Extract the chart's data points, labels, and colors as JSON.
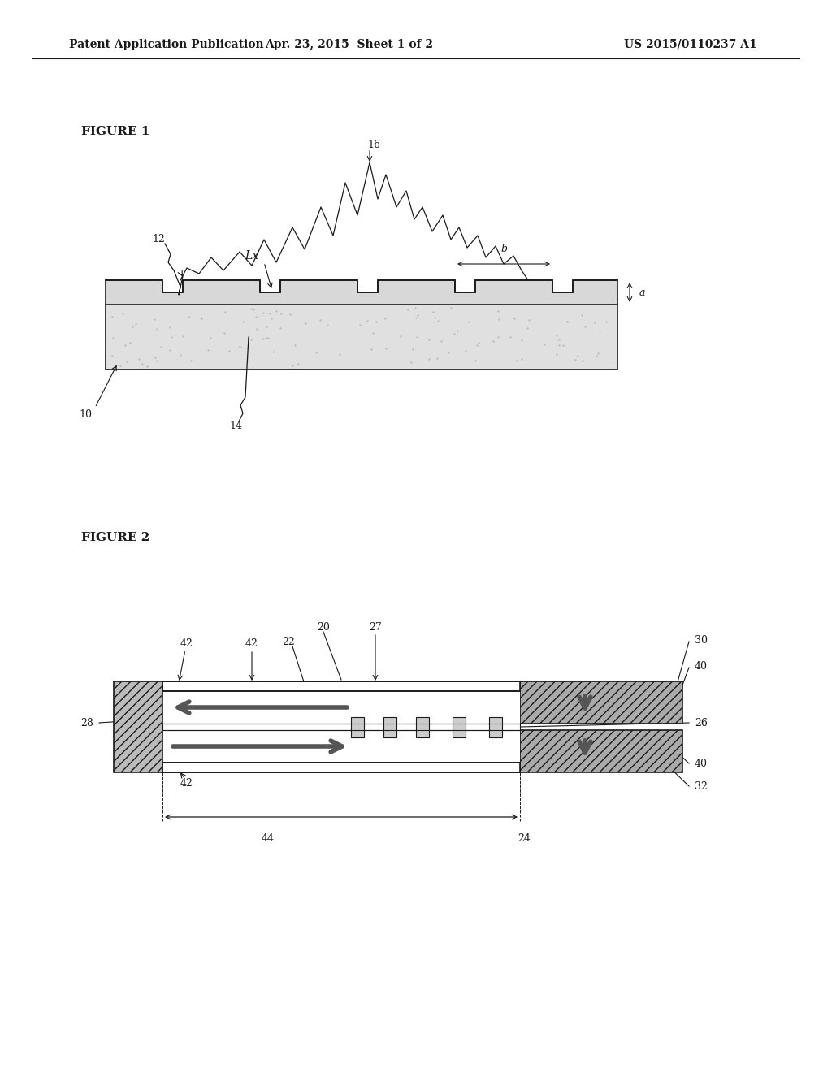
{
  "bg_color": "#ffffff",
  "header_left": "Patent Application Publication",
  "header_mid": "Apr. 23, 2015  Sheet 1 of 2",
  "header_right": "US 2015/0110237 A1",
  "fig1_label": "FIGURE 1",
  "fig2_label": "FIGURE 2",
  "line_color": "#1a1a1a"
}
